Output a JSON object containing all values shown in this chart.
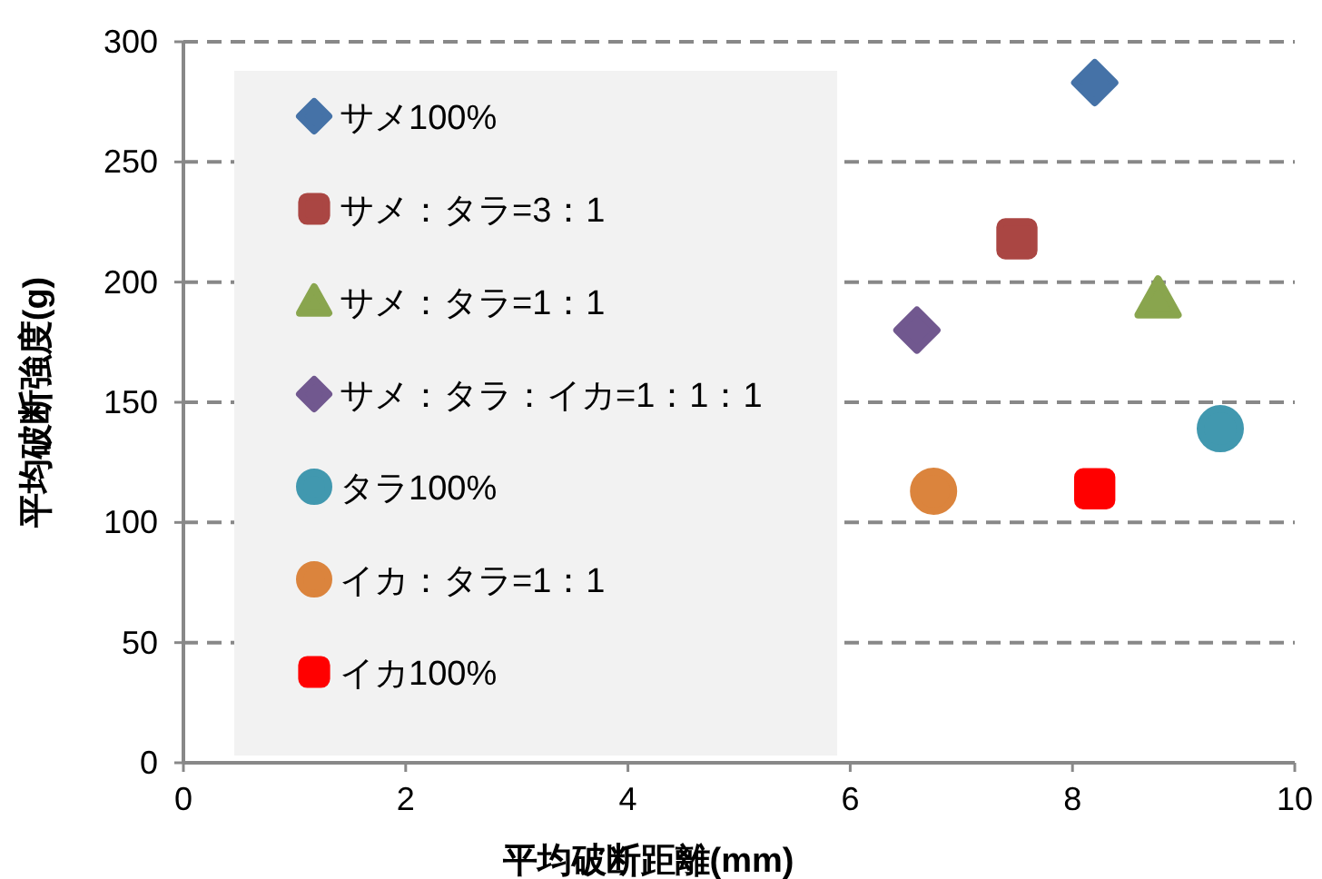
{
  "chart_data": {
    "type": "scatter",
    "xlabel": "平均破断距離(mm)",
    "ylabel": "平均破断強度(g)",
    "xlim": [
      0,
      10
    ],
    "xticks": [
      0,
      2,
      4,
      6,
      8,
      10
    ],
    "ylim": [
      0,
      300
    ],
    "yticks": [
      0,
      50,
      100,
      150,
      200,
      250,
      300
    ],
    "grid": "y",
    "legend": "top left",
    "series": [
      {
        "name": "サメ100%",
        "color": "#4572a7",
        "marker": "diamond",
        "x": [
          8.2
        ],
        "values": [
          283
        ]
      },
      {
        "name": "サメ：タラ=3：1",
        "color": "#aa4643",
        "marker": "square",
        "x": [
          7.5
        ],
        "values": [
          218
        ]
      },
      {
        "name": "サメ：タラ=1：1",
        "color": "#89a54e",
        "marker": "triangle",
        "x": [
          8.77
        ],
        "values": [
          193
        ]
      },
      {
        "name": "サメ：タラ：イカ=1：1：1",
        "color": "#71588f",
        "marker": "diamond",
        "x": [
          6.6
        ],
        "values": [
          180
        ]
      },
      {
        "name": "タラ100%",
        "color": "#4198af",
        "marker": "circle",
        "x": [
          9.33
        ],
        "values": [
          139
        ]
      },
      {
        "name": "イカ：タラ=1：1",
        "color": "#db843d",
        "marker": "circle",
        "x": [
          6.75
        ],
        "values": [
          113
        ]
      },
      {
        "name": "イカ100%",
        "color": "#ff0000",
        "marker": "square",
        "x": [
          8.2
        ],
        "values": [
          114
        ]
      }
    ]
  }
}
